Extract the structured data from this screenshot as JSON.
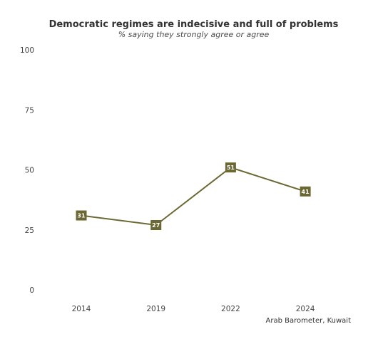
{
  "chart_data": {
    "type": "line",
    "title": "Democratic regimes are indecisive and full of problems",
    "subtitle": "% saying they strongly agree or agree",
    "categories": [
      "2014",
      "2019",
      "2022",
      "2024"
    ],
    "series": [
      {
        "values": [
          31,
          27,
          51,
          41
        ]
      }
    ],
    "ylim": [
      0,
      100
    ],
    "yticks": [
      "0",
      "25",
      "50",
      "75",
      "100"
    ],
    "grid": false,
    "legend": "none",
    "source": "Arab Barometer, Kuwait",
    "color": "#6b6834"
  }
}
